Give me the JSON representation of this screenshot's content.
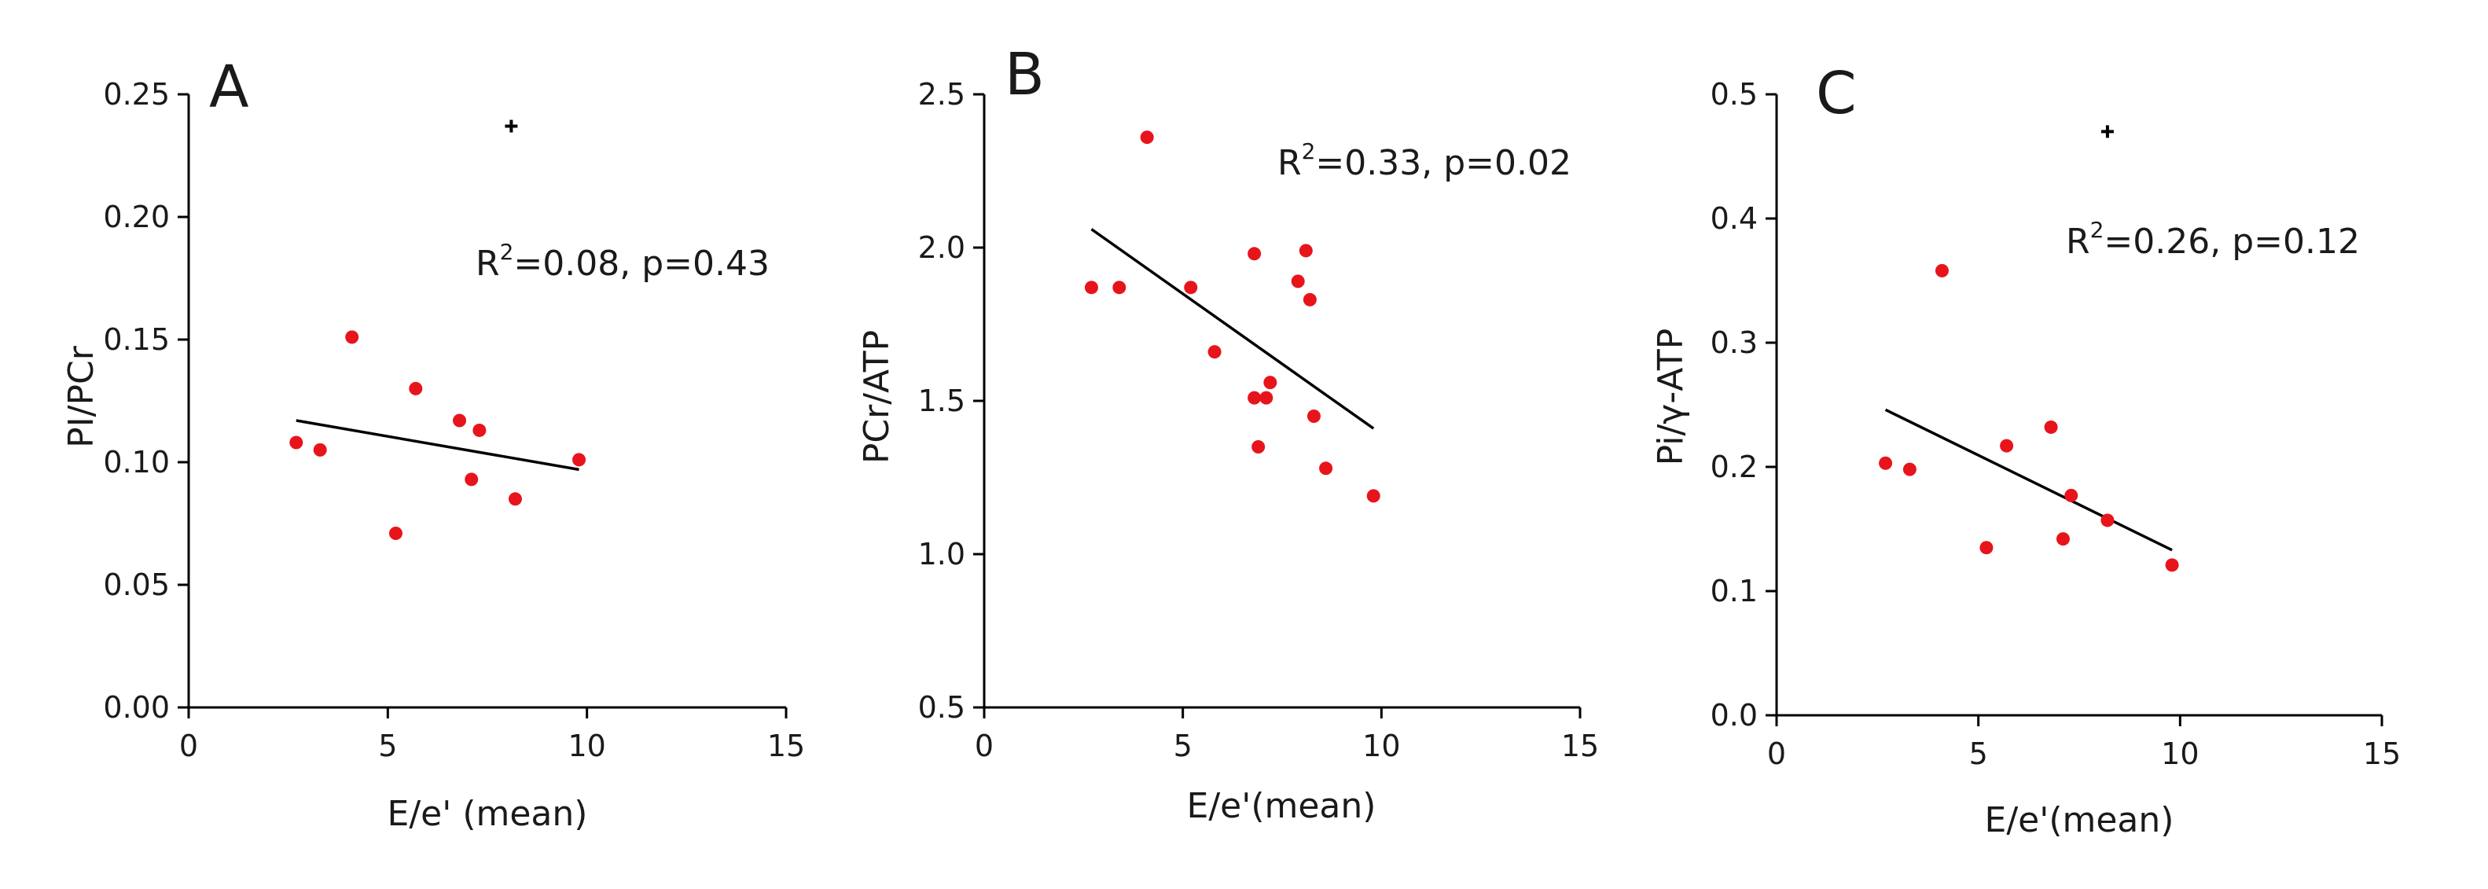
{
  "colors": {
    "points": "#e8141b",
    "line": "#000000",
    "axis": "#000000"
  },
  "chart_data": [
    {
      "type": "scatter",
      "panel": "A",
      "xlabel": "E/e' (mean)",
      "ylabel": "PI/PCr",
      "xlim": [
        0,
        15
      ],
      "ylim": [
        0.0,
        0.25
      ],
      "xticks": [
        0,
        5,
        10,
        15
      ],
      "yticks": [
        0.0,
        0.05,
        0.1,
        0.15,
        0.2,
        0.25
      ],
      "x_tick_labels": [
        "0",
        "5",
        "10",
        "15"
      ],
      "y_tick_labels": [
        "0.00",
        "0.05",
        "0.10",
        "0.15",
        "0.20",
        "0.25"
      ],
      "annotation": {
        "r_label": "R",
        "r_exp": "2",
        "text": "=0.08, p=0.43"
      },
      "points": [
        {
          "x": 2.7,
          "y": 0.108
        },
        {
          "x": 3.3,
          "y": 0.105
        },
        {
          "x": 4.1,
          "y": 0.151
        },
        {
          "x": 5.2,
          "y": 0.071
        },
        {
          "x": 5.7,
          "y": 0.13
        },
        {
          "x": 6.8,
          "y": 0.117
        },
        {
          "x": 7.1,
          "y": 0.093
        },
        {
          "x": 7.3,
          "y": 0.113
        },
        {
          "x": 8.2,
          "y": 0.085
        },
        {
          "x": 9.8,
          "y": 0.101
        }
      ],
      "outliers": [
        {
          "x": 8.1,
          "y": 0.237
        }
      ],
      "fit": {
        "x1": 2.7,
        "y1": 0.117,
        "x2": 9.8,
        "y2": 0.097
      }
    },
    {
      "type": "scatter",
      "panel": "B",
      "xlabel": "E/e'(mean)",
      "ylabel": "PCr/ATP",
      "xlim": [
        0,
        15
      ],
      "ylim": [
        0.5,
        2.5
      ],
      "xticks": [
        0,
        5,
        10,
        15
      ],
      "yticks": [
        0.5,
        1.0,
        1.5,
        2.0,
        2.5
      ],
      "x_tick_labels": [
        "0",
        "5",
        "10",
        "15"
      ],
      "y_tick_labels": [
        "0.5",
        "1.0",
        "1.5",
        "2.0",
        "2.5"
      ],
      "annotation": {
        "r_label": "R",
        "r_exp": "2",
        "text": "=0.33, p=0.02"
      },
      "points": [
        {
          "x": 2.7,
          "y": 1.87
        },
        {
          "x": 3.4,
          "y": 1.87
        },
        {
          "x": 4.1,
          "y": 2.36
        },
        {
          "x": 5.2,
          "y": 1.87
        },
        {
          "x": 5.8,
          "y": 1.66
        },
        {
          "x": 6.8,
          "y": 1.98
        },
        {
          "x": 6.8,
          "y": 1.51
        },
        {
          "x": 6.9,
          "y": 1.35
        },
        {
          "x": 7.1,
          "y": 1.51
        },
        {
          "x": 7.2,
          "y": 1.56
        },
        {
          "x": 7.9,
          "y": 1.89
        },
        {
          "x": 8.1,
          "y": 1.99
        },
        {
          "x": 8.2,
          "y": 1.83
        },
        {
          "x": 8.3,
          "y": 1.45
        },
        {
          "x": 8.6,
          "y": 1.28
        },
        {
          "x": 9.8,
          "y": 1.19
        }
      ],
      "outliers": [],
      "fit": {
        "x1": 2.7,
        "y1": 2.06,
        "x2": 9.8,
        "y2": 1.41
      }
    },
    {
      "type": "scatter",
      "panel": "C",
      "xlabel": "E/e'(mean)",
      "ylabel": "Pi/γ-ATP",
      "xlim": [
        0,
        15
      ],
      "ylim": [
        0.0,
        0.5
      ],
      "xticks": [
        0,
        5,
        10,
        15
      ],
      "yticks": [
        0.0,
        0.1,
        0.2,
        0.3,
        0.4,
        0.5
      ],
      "x_tick_labels": [
        "0",
        "5",
        "10",
        "15"
      ],
      "y_tick_labels": [
        "0.0",
        "0.1",
        "0.2",
        "0.3",
        "0.4",
        "0.5"
      ],
      "annotation": {
        "r_label": "R",
        "r_exp": "2",
        "text": "=0.26, p=0.12"
      },
      "points": [
        {
          "x": 2.7,
          "y": 0.203
        },
        {
          "x": 3.3,
          "y": 0.198
        },
        {
          "x": 4.1,
          "y": 0.358
        },
        {
          "x": 5.2,
          "y": 0.135
        },
        {
          "x": 5.7,
          "y": 0.217
        },
        {
          "x": 6.8,
          "y": 0.232
        },
        {
          "x": 7.1,
          "y": 0.142
        },
        {
          "x": 7.3,
          "y": 0.177
        },
        {
          "x": 8.2,
          "y": 0.157
        },
        {
          "x": 9.8,
          "y": 0.121
        }
      ],
      "outliers": [
        {
          "x": 8.2,
          "y": 0.47
        }
      ],
      "fit": {
        "x1": 2.7,
        "y1": 0.246,
        "x2": 9.8,
        "y2": 0.133
      }
    }
  ]
}
